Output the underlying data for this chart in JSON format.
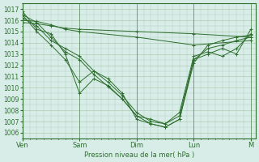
{
  "bg_color": "#d8ede8",
  "grid_color": "#b0ccb8",
  "line_color": "#2d6e2d",
  "xlabel": "Pression niveau de la mer( hPa )",
  "yticks": [
    1006,
    1007,
    1008,
    1009,
    1010,
    1011,
    1012,
    1013,
    1014,
    1015,
    1016,
    1017
  ],
  "ylim": [
    1005.5,
    1017.5
  ],
  "day_labels": [
    "Ven",
    "Sam",
    "Dim",
    "Lun",
    "M"
  ],
  "day_positions": [
    0,
    48,
    96,
    144,
    192
  ],
  "xlim": [
    0,
    196
  ],
  "series_x": [
    [
      0,
      12,
      24,
      36,
      48,
      60,
      72,
      84,
      96,
      108,
      120,
      132,
      144,
      156,
      168,
      180,
      192
    ],
    [
      0,
      12,
      24,
      36,
      48,
      60,
      72,
      84,
      96,
      108,
      120,
      132,
      144,
      156,
      168,
      180,
      192
    ],
    [
      0,
      12,
      24,
      36,
      48,
      60,
      72,
      84,
      96,
      108,
      120,
      132,
      144,
      156,
      168,
      180,
      192
    ],
    [
      0,
      12,
      24,
      36,
      48,
      96,
      144,
      192
    ],
    [
      0,
      12,
      24,
      36,
      48,
      96,
      144,
      192
    ],
    [
      0,
      12,
      24,
      36,
      48,
      60,
      72,
      84,
      96,
      108,
      120,
      132,
      144,
      156,
      168,
      180,
      192
    ]
  ],
  "series_y": [
    [
      1016.5,
      1015.8,
      1014.5,
      1013.2,
      1012.5,
      1011.2,
      1010.1,
      1009.0,
      1007.5,
      1006.8,
      1006.5,
      1007.2,
      1012.2,
      1013.8,
      1014.2,
      1014.5,
      1014.7
    ],
    [
      1016.2,
      1015.5,
      1014.2,
      1013.5,
      1012.8,
      1011.5,
      1010.5,
      1009.3,
      1007.8,
      1007.0,
      1006.8,
      1007.5,
      1012.5,
      1013.5,
      1013.8,
      1014.2,
      1014.5
    ],
    [
      1016.8,
      1015.2,
      1014.8,
      1013.0,
      1009.5,
      1010.8,
      1010.2,
      1009.0,
      1007.5,
      1007.2,
      1006.8,
      1007.8,
      1012.8,
      1013.2,
      1012.8,
      1013.5,
      1014.8
    ],
    [
      1015.8,
      1015.7,
      1015.5,
      1015.3,
      1015.2,
      1015.0,
      1014.8,
      1014.5
    ],
    [
      1016.0,
      1015.9,
      1015.6,
      1015.2,
      1015.0,
      1014.5,
      1013.8,
      1014.2
    ],
    [
      1016.5,
      1015.0,
      1013.8,
      1012.5,
      1010.5,
      1011.5,
      1010.8,
      1009.5,
      1007.2,
      1006.8,
      1006.5,
      1007.2,
      1012.5,
      1013.0,
      1013.5,
      1013.0,
      1015.2
    ]
  ]
}
